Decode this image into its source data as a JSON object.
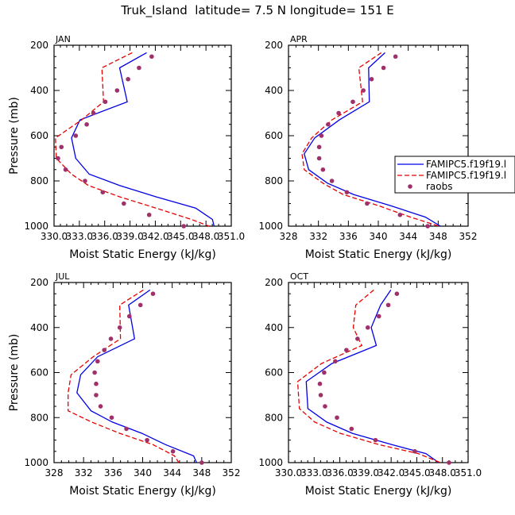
{
  "title": "Truk_Island  latitude= 7.5 N longitude= 151 E",
  "colors": {
    "model1": "#0000e6",
    "model2": "#e60000",
    "raobs": "#a0306a",
    "axis": "#000000"
  },
  "legend": {
    "entries": [
      "FAMIPC5.f19f19.l",
      "FAMIPC5.f19f19.l",
      "raobs"
    ]
  },
  "chart_data": [
    {
      "type": "line",
      "panel": "JAN",
      "label": "JAN",
      "xlabel": "Moist Static Energy (kJ/kg)",
      "ylabel": "Pressure (mb)",
      "xlim": [
        330.03,
        351.03
      ],
      "ylim": [
        1000,
        200
      ],
      "xticks": [
        330.03,
        333.03,
        336.03,
        339.03,
        342.03,
        345.03,
        348.03,
        351.03
      ],
      "xtick_labels": [
        "330.0",
        "333.0",
        "336.0",
        "339.0",
        "342.0",
        "345.0",
        "348.0",
        "351.0"
      ],
      "yticks": [
        200,
        400,
        600,
        800,
        1000
      ],
      "show_legend": false,
      "series": [
        {
          "name": "FAMIPC5.f19f19.l",
          "style": "solid",
          "x": [
            341.0,
            337.8,
            338.7,
            333.1,
            332.1,
            332.6,
            334.2,
            337.8,
            342.1,
            346.8,
            348.8,
            349.0
          ],
          "y": [
            233,
            300,
            450,
            530,
            610,
            700,
            770,
            820,
            870,
            920,
            970,
            1000
          ]
        },
        {
          "name": "FAMIPC5.f19f19.l",
          "style": "dashed",
          "x": [
            339.3,
            335.7,
            335.9,
            333.3,
            330.2,
            330.3,
            332.1,
            334.1,
            337.8,
            342.1,
            346.3,
            348.4
          ],
          "y": [
            233,
            300,
            450,
            530,
            610,
            700,
            770,
            820,
            870,
            920,
            970,
            1000
          ]
        },
        {
          "name": "raobs",
          "style": "dots",
          "x": [
            341.6,
            340.1,
            338.8,
            337.5,
            336.1,
            334.7,
            333.9,
            332.6,
            330.9,
            330.5,
            331.4,
            333.7,
            335.8,
            338.3,
            341.3,
            345.4
          ],
          "y": [
            250,
            300,
            350,
            400,
            450,
            500,
            550,
            600,
            650,
            700,
            750,
            800,
            850,
            900,
            950,
            1000
          ]
        }
      ]
    },
    {
      "type": "line",
      "panel": "APR",
      "label": "APR",
      "xlabel": "Moist Static Energy (kJ/kg)",
      "ylabel": "",
      "xlim": [
        328,
        352
      ],
      "ylim": [
        1000,
        200
      ],
      "xticks": [
        328,
        332,
        336,
        340,
        344,
        348,
        352
      ],
      "xtick_labels": [
        "328",
        "332",
        "336",
        "340",
        "344",
        "348",
        "352"
      ],
      "yticks": [
        200,
        400,
        600,
        800,
        1000
      ],
      "show_legend": true,
      "series": [
        {
          "name": "FAMIPC5.f19f19.l",
          "style": "solid",
          "x": [
            340.9,
            338.7,
            338.8,
            334.8,
            331.5,
            330.1,
            330.7,
            333.2,
            336.7,
            341.7,
            346.3,
            348.3
          ],
          "y": [
            233,
            300,
            450,
            530,
            610,
            680,
            750,
            810,
            860,
            910,
            960,
            1000
          ]
        },
        {
          "name": "FAMIPC5.f19f19.l",
          "style": "dashed",
          "x": [
            340.4,
            337.4,
            337.9,
            333.8,
            331.1,
            329.8,
            330.1,
            332.6,
            335.3,
            340.1,
            344.3,
            348.1
          ],
          "y": [
            233,
            300,
            450,
            530,
            610,
            680,
            750,
            810,
            860,
            910,
            960,
            1000
          ]
        },
        {
          "name": "raobs",
          "style": "dots",
          "x": [
            342.3,
            340.7,
            339.1,
            338.0,
            336.6,
            334.7,
            333.3,
            332.4,
            332.1,
            332.1,
            332.6,
            333.8,
            335.8,
            338.5,
            342.9,
            346.6
          ],
          "y": [
            250,
            300,
            350,
            400,
            450,
            500,
            550,
            600,
            650,
            700,
            750,
            800,
            850,
            900,
            950,
            1000
          ]
        }
      ]
    },
    {
      "type": "line",
      "panel": "JUL",
      "label": "JUL",
      "xlabel": "Moist Static Energy (kJ/kg)",
      "ylabel": "Pressure (mb)",
      "xlim": [
        328,
        352
      ],
      "ylim": [
        1000,
        200
      ],
      "xticks": [
        328,
        332,
        336,
        340,
        344,
        348,
        352
      ],
      "xtick_labels": [
        "328",
        "332",
        "336",
        "340",
        "344",
        "348",
        "352"
      ],
      "yticks": [
        200,
        400,
        600,
        800,
        1000
      ],
      "show_legend": false,
      "series": [
        {
          "name": "FAMIPC5.f19f19.l",
          "style": "solid",
          "x": [
            341.0,
            338.1,
            338.9,
            333.9,
            331.6,
            331.1,
            333.0,
            335.9,
            339.9,
            343.1,
            346.9,
            347.3
          ],
          "y": [
            233,
            300,
            450,
            530,
            610,
            690,
            770,
            820,
            870,
            920,
            970,
            1000
          ]
        },
        {
          "name": "FAMIPC5.f19f19.l",
          "style": "dashed",
          "x": [
            340.1,
            336.9,
            337.0,
            333.3,
            330.3,
            329.9,
            329.9,
            333.1,
            336.9,
            341.4,
            344.3,
            344.9
          ],
          "y": [
            233,
            300,
            450,
            530,
            610,
            690,
            770,
            820,
            870,
            920,
            970,
            1000
          ]
        },
        {
          "name": "raobs",
          "style": "dots",
          "x": [
            341.4,
            339.7,
            338.2,
            336.9,
            335.7,
            334.8,
            333.9,
            333.5,
            333.7,
            333.7,
            334.3,
            335.8,
            337.8,
            340.6,
            344.1,
            348.0
          ],
          "y": [
            250,
            300,
            350,
            400,
            450,
            500,
            550,
            600,
            650,
            700,
            750,
            800,
            850,
            900,
            950,
            1000
          ]
        }
      ]
    },
    {
      "type": "line",
      "panel": "OCT",
      "label": "OCT",
      "xlabel": "Moist Static Energy (kJ/kg)",
      "ylabel": "",
      "xlim": [
        330.03,
        351.03
      ],
      "ylim": [
        1000,
        200
      ],
      "xticks": [
        330.03,
        333.03,
        336.03,
        339.03,
        342.03,
        345.03,
        348.03,
        351.03
      ],
      "xtick_labels": [
        "330.0",
        "333.0",
        "336.0",
        "339.0",
        "342.0",
        "345.0",
        "348.0",
        "351.0"
      ],
      "yticks": [
        200,
        400,
        600,
        800,
        1000
      ],
      "show_legend": false,
      "series": [
        {
          "name": "FAMIPC5.f19f19.l",
          "style": "solid",
          "x": [
            342.0,
            340.8,
            339.7,
            340.3,
            335.1,
            332.1,
            332.3,
            334.5,
            337.5,
            342.1,
            346.1,
            347.6
          ],
          "y": [
            233,
            300,
            400,
            480,
            560,
            640,
            760,
            820,
            870,
            920,
            960,
            1000
          ]
        },
        {
          "name": "FAMIPC5.f19f19.l",
          "style": "dashed",
          "x": [
            340.0,
            337.9,
            337.6,
            338.6,
            333.9,
            331.1,
            331.3,
            333.1,
            336.1,
            340.6,
            345.2,
            347.8
          ],
          "y": [
            233,
            300,
            400,
            480,
            560,
            640,
            760,
            820,
            870,
            920,
            960,
            1000
          ]
        },
        {
          "name": "raobs",
          "style": "dots",
          "x": [
            342.7,
            341.7,
            340.6,
            339.3,
            338.1,
            336.8,
            335.5,
            334.2,
            333.7,
            333.8,
            334.3,
            335.7,
            337.4,
            340.2,
            344.8,
            348.8
          ],
          "y": [
            250,
            300,
            350,
            400,
            450,
            500,
            550,
            600,
            650,
            700,
            750,
            800,
            850,
            900,
            950,
            1000
          ]
        }
      ]
    }
  ]
}
